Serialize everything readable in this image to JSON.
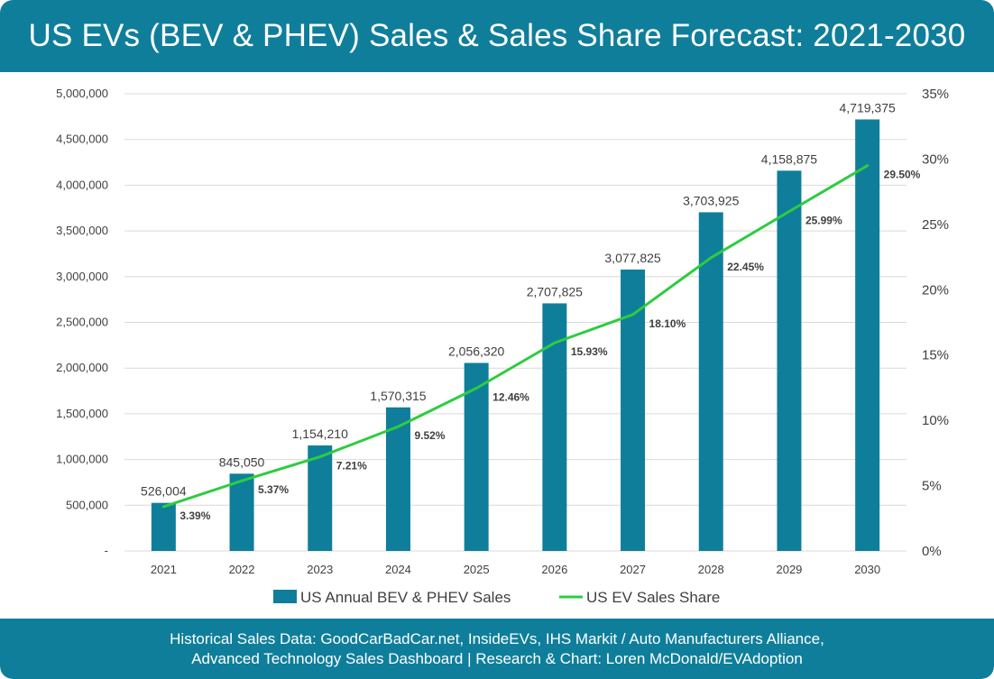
{
  "title": "US EVs (BEV & PHEV) Sales & Sales Share Forecast: 2021-2030",
  "footer": {
    "line1": "Historical Sales Data: GoodCarBadCar.net, InsideEVs, IHS Markit / Auto Manufacturers Alliance,",
    "line2": "Advanced Technology Sales Dashboard | Research & Chart: Loren McDonald/EVAdoption"
  },
  "colors": {
    "header": "#0f7e9b",
    "bar": "#0f7e9b",
    "line": "#2ecc40",
    "grid": "#d9d9d9"
  },
  "chart_data": {
    "type": "bar",
    "categories": [
      "2021",
      "2022",
      "2023",
      "2024",
      "2025",
      "2026",
      "2027",
      "2028",
      "2029",
      "2030"
    ],
    "series": [
      {
        "name": "US Annual BEV & PHEV Sales",
        "type": "bar",
        "axis": "left",
        "values": [
          526004,
          845050,
          1154210,
          1570315,
          2056320,
          2707825,
          3077825,
          3703925,
          4158875,
          4719375
        ],
        "labels": [
          "526,004",
          "845,050",
          "1,154,210",
          "1,570,315",
          "2,056,320",
          "2,707,825",
          "3,077,825",
          "3,703,925",
          "4,158,875",
          "4,719,375"
        ]
      },
      {
        "name": "US EV Sales Share",
        "type": "line",
        "axis": "right",
        "values": [
          3.39,
          5.37,
          7.21,
          9.52,
          12.46,
          15.93,
          18.1,
          22.45,
          25.99,
          29.5
        ],
        "labels": [
          "3.39%",
          "5.37%",
          "7.21%",
          "9.52%",
          "12.46%",
          "15.93%",
          "18.10%",
          "22.45%",
          "25.99%",
          "29.50%"
        ]
      }
    ],
    "y_left": {
      "range": [
        0,
        5000000
      ],
      "ticks": [
        0,
        500000,
        1000000,
        1500000,
        2000000,
        2500000,
        3000000,
        3500000,
        4000000,
        4500000,
        5000000
      ],
      "tick_labels": [
        "-",
        "500,000",
        "1,000,000",
        "1,500,000",
        "2,000,000",
        "2,500,000",
        "3,000,000",
        "3,500,000",
        "4,000,000",
        "4,500,000",
        "5,000,000"
      ]
    },
    "y_right": {
      "range": [
        0,
        35
      ],
      "ticks": [
        0,
        5,
        10,
        15,
        20,
        25,
        30,
        35
      ],
      "tick_labels": [
        "0%",
        "5%",
        "10%",
        "15%",
        "20%",
        "25%",
        "30%",
        "35%"
      ]
    },
    "grid": true,
    "legend": "bottom"
  }
}
